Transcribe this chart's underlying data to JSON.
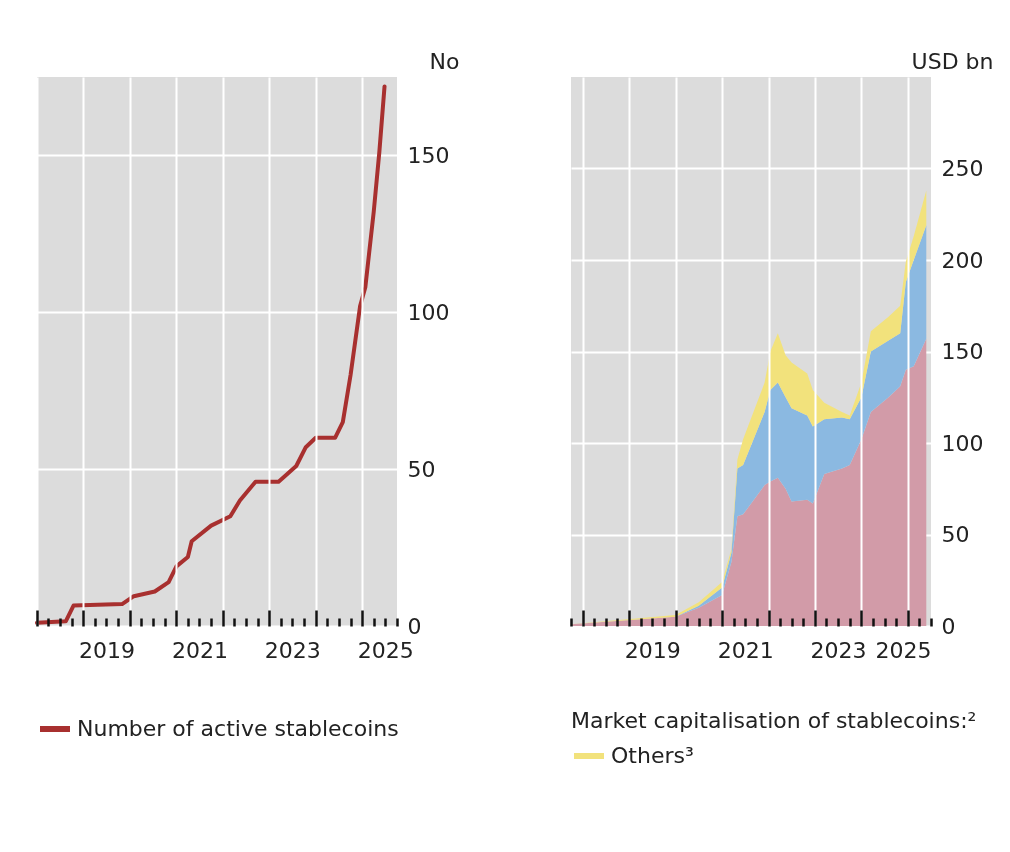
{
  "chart_data": [
    {
      "type": "line",
      "ylabel": "No",
      "x": [
        "2018-01-01",
        "2018-08-15",
        "2018-10-15",
        "2019-11-01",
        "2020-02-01",
        "2020-07-15",
        "2020-11-01",
        "2021-01-01",
        "2021-04-01",
        "2021-05-01",
        "2021-10-01",
        "2022-03-01",
        "2022-05-15",
        "2022-09-15",
        "2023-03-15",
        "2023-08-01",
        "2023-10-15",
        "2024-01-01",
        "2024-06-01",
        "2024-08-01",
        "2024-10-01",
        "2024-12-15",
        "2025-01-25",
        "2025-04-01",
        "2025-05-15",
        "2025-06-25"
      ],
      "series": [
        {
          "name": "Number of active stablecoins",
          "color": "#a8302f",
          "values": [
            1,
            1.5,
            6.5,
            7,
            9.5,
            11,
            14,
            19,
            22,
            27,
            32,
            35,
            40,
            46,
            46,
            51,
            57,
            60,
            60,
            65,
            80,
            102,
            108,
            132,
            151,
            172
          ]
        }
      ],
      "xlim": [
        "2018-01-01",
        "2025-10-01"
      ],
      "xticks": [
        {
          "value": "2018-01-01",
          "label": null
        },
        {
          "value": "2018-04-01",
          "label": null
        },
        {
          "value": "2018-07-01",
          "label": null
        },
        {
          "value": "2018-10-01",
          "label": null
        },
        {
          "value": "2019-01-01",
          "label": null
        },
        {
          "value": "2019-04-01",
          "label": null
        },
        {
          "value": "2019-07-01",
          "label": "2019"
        },
        {
          "value": "2019-10-01",
          "label": null
        },
        {
          "value": "2020-01-01",
          "label": null
        },
        {
          "value": "2020-04-01",
          "label": null
        },
        {
          "value": "2020-07-01",
          "label": null
        },
        {
          "value": "2020-10-01",
          "label": null
        },
        {
          "value": "2021-01-01",
          "label": null
        },
        {
          "value": "2021-04-01",
          "label": null
        },
        {
          "value": "2021-07-01",
          "label": "2021"
        },
        {
          "value": "2021-10-01",
          "label": null
        },
        {
          "value": "2022-01-01",
          "label": null
        },
        {
          "value": "2022-04-01",
          "label": null
        },
        {
          "value": "2022-07-01",
          "label": null
        },
        {
          "value": "2022-10-01",
          "label": null
        },
        {
          "value": "2023-01-01",
          "label": null
        },
        {
          "value": "2023-04-01",
          "label": null
        },
        {
          "value": "2023-07-01",
          "label": "2023"
        },
        {
          "value": "2023-10-01",
          "label": null
        },
        {
          "value": "2024-01-01",
          "label": null
        },
        {
          "value": "2024-04-01",
          "label": null
        },
        {
          "value": "2024-07-01",
          "label": null
        },
        {
          "value": "2024-10-01",
          "label": null
        },
        {
          "value": "2025-01-01",
          "label": null
        },
        {
          "value": "2025-04-01",
          "label": null
        },
        {
          "value": "2025-07-01",
          "label": "2025"
        },
        {
          "value": "2025-10-01",
          "label": null
        }
      ],
      "ylim": [
        0,
        175
      ],
      "yticks": [
        0,
        50,
        100,
        150
      ],
      "grid": true,
      "legend": "bottom"
    },
    {
      "type": "area",
      "stacked": true,
      "ylabel": "USD bn",
      "legend_title": "Market capitalisation of stablecoins:²",
      "x": [
        "2017-10-01",
        "2020-01-01",
        "2020-07-01",
        "2021-01-01",
        "2021-03-15",
        "2021-05-01",
        "2021-06-15",
        "2021-12-01",
        "2022-01-15",
        "2022-03-15",
        "2022-05-15",
        "2022-07-01",
        "2022-11-01",
        "2022-12-15",
        "2023-03-15",
        "2023-08-01",
        "2023-10-01",
        "2024-01-01",
        "2024-03-15",
        "2024-08-01",
        "2024-11-01",
        "2024-12-15",
        "2025-02-15",
        "2025-05-25"
      ],
      "series": [
        {
          "color": "#d29ba8",
          "values": [
            1,
            5,
            10,
            17,
            35,
            60,
            61,
            77,
            79,
            81,
            75,
            68,
            69,
            67,
            83,
            86,
            88,
            102,
            117,
            125,
            131,
            140,
            142,
            157
          ]
        },
        {
          "color": "#8bb9e1",
          "values": [
            0,
            0,
            1,
            4,
            5,
            26,
            27,
            40,
            50,
            52,
            50,
            51,
            46,
            42,
            30,
            28,
            25,
            23,
            33,
            31,
            29,
            48,
            58,
            62
          ]
        },
        {
          "name": "Others³",
          "color": "#f2e27c",
          "values": [
            0,
            1,
            2,
            3,
            2,
            5,
            14,
            16,
            21,
            27,
            23,
            25,
            23,
            20,
            9,
            3,
            2,
            8,
            11,
            13,
            15,
            11,
            13,
            19
          ]
        }
      ],
      "xlim": [
        "2017-10-01",
        "2025-07-01"
      ],
      "xticks": [
        {
          "value": "2017-10-01",
          "label": null
        },
        {
          "value": "2018-01-01",
          "label": null
        },
        {
          "value": "2018-04-01",
          "label": null
        },
        {
          "value": "2018-07-01",
          "label": null
        },
        {
          "value": "2018-10-01",
          "label": null
        },
        {
          "value": "2019-01-01",
          "label": null
        },
        {
          "value": "2019-04-01",
          "label": null
        },
        {
          "value": "2019-07-01",
          "label": "2019"
        },
        {
          "value": "2019-10-01",
          "label": null
        },
        {
          "value": "2020-01-01",
          "label": null
        },
        {
          "value": "2020-04-01",
          "label": null
        },
        {
          "value": "2020-07-01",
          "label": null
        },
        {
          "value": "2020-10-01",
          "label": null
        },
        {
          "value": "2021-01-01",
          "label": null
        },
        {
          "value": "2021-04-01",
          "label": null
        },
        {
          "value": "2021-07-01",
          "label": "2021"
        },
        {
          "value": "2021-10-01",
          "label": null
        },
        {
          "value": "2022-01-01",
          "label": null
        },
        {
          "value": "2022-04-01",
          "label": null
        },
        {
          "value": "2022-07-01",
          "label": null
        },
        {
          "value": "2022-10-01",
          "label": null
        },
        {
          "value": "2023-01-01",
          "label": null
        },
        {
          "value": "2023-04-01",
          "label": null
        },
        {
          "value": "2023-07-01",
          "label": "2023"
        },
        {
          "value": "2023-10-01",
          "label": null
        },
        {
          "value": "2024-01-01",
          "label": null
        },
        {
          "value": "2024-04-01",
          "label": null
        },
        {
          "value": "2024-07-01",
          "label": null
        },
        {
          "value": "2024-10-01",
          "label": null
        },
        {
          "value": "2025-01-01",
          "label": null
        },
        {
          "value": "2025-04-01",
          "label": null
        },
        {
          "value": "2025-07-01",
          "label": "2025"
        }
      ],
      "ylim": [
        0,
        300
      ],
      "yticks": [
        0,
        50,
        100,
        150,
        200,
        250
      ],
      "grid": true,
      "legend": "bottom"
    }
  ]
}
